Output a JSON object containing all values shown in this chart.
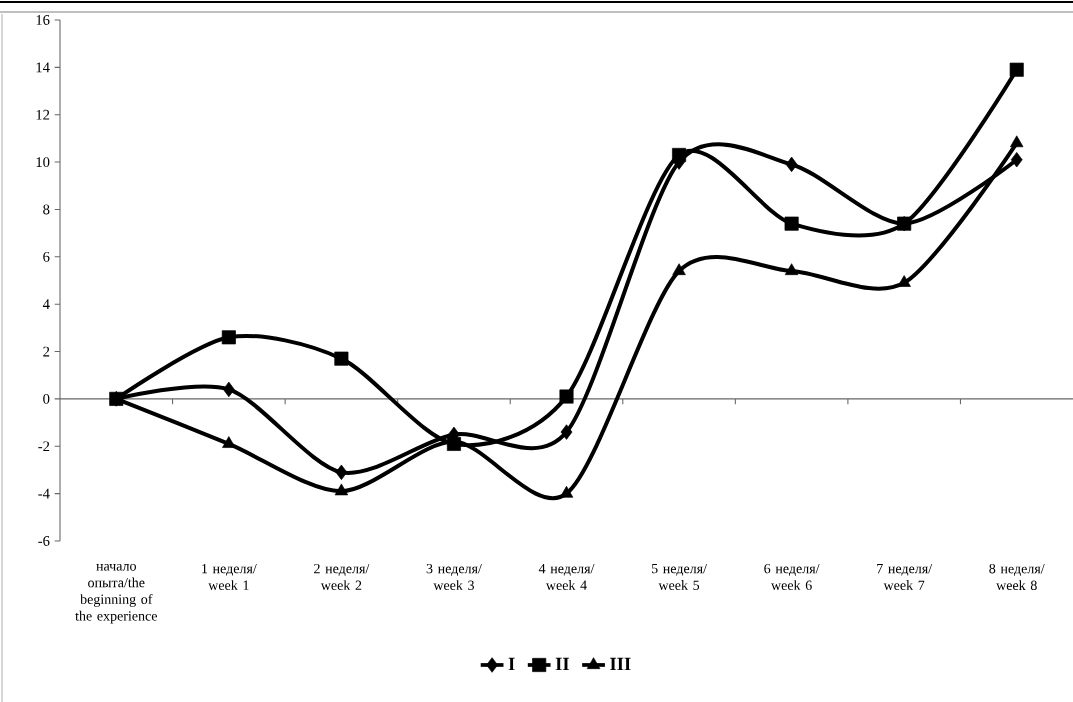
{
  "chart_data": {
    "type": "line",
    "categories": [
      "начало опыта/the beginning of the experience",
      "1 неделя/ week 1",
      "2 неделя/ week 2",
      "3 неделя/ week 3",
      "4 неделя/ week 4",
      "5 неделя/ week 5",
      "6 неделя/ week 6",
      "7 неделя/ week 7",
      "8 неделя/ week 8"
    ],
    "series": [
      {
        "name": "I",
        "color": "#000000",
        "marker": "diamond",
        "values": [
          0,
          0.4,
          -3.1,
          -1.5,
          -1.4,
          10,
          9.9,
          7.4,
          10.1
        ]
      },
      {
        "name": "II",
        "color": "#000000",
        "marker": "square",
        "values": [
          0,
          2.6,
          1.7,
          -1.9,
          0.1,
          10.3,
          7.4,
          7.4,
          13.9
        ]
      },
      {
        "name": "III",
        "color": "#000000",
        "marker": "triangle",
        "values": [
          0,
          -1.9,
          -3.9,
          -1.8,
          -4,
          5.4,
          5.4,
          4.9,
          10.8
        ]
      }
    ],
    "ylim": [
      -6,
      16
    ],
    "yticks": [
      -6,
      -4,
      -2,
      0,
      2,
      4,
      6,
      8,
      10,
      12,
      14,
      16
    ],
    "legend": "bottom"
  }
}
